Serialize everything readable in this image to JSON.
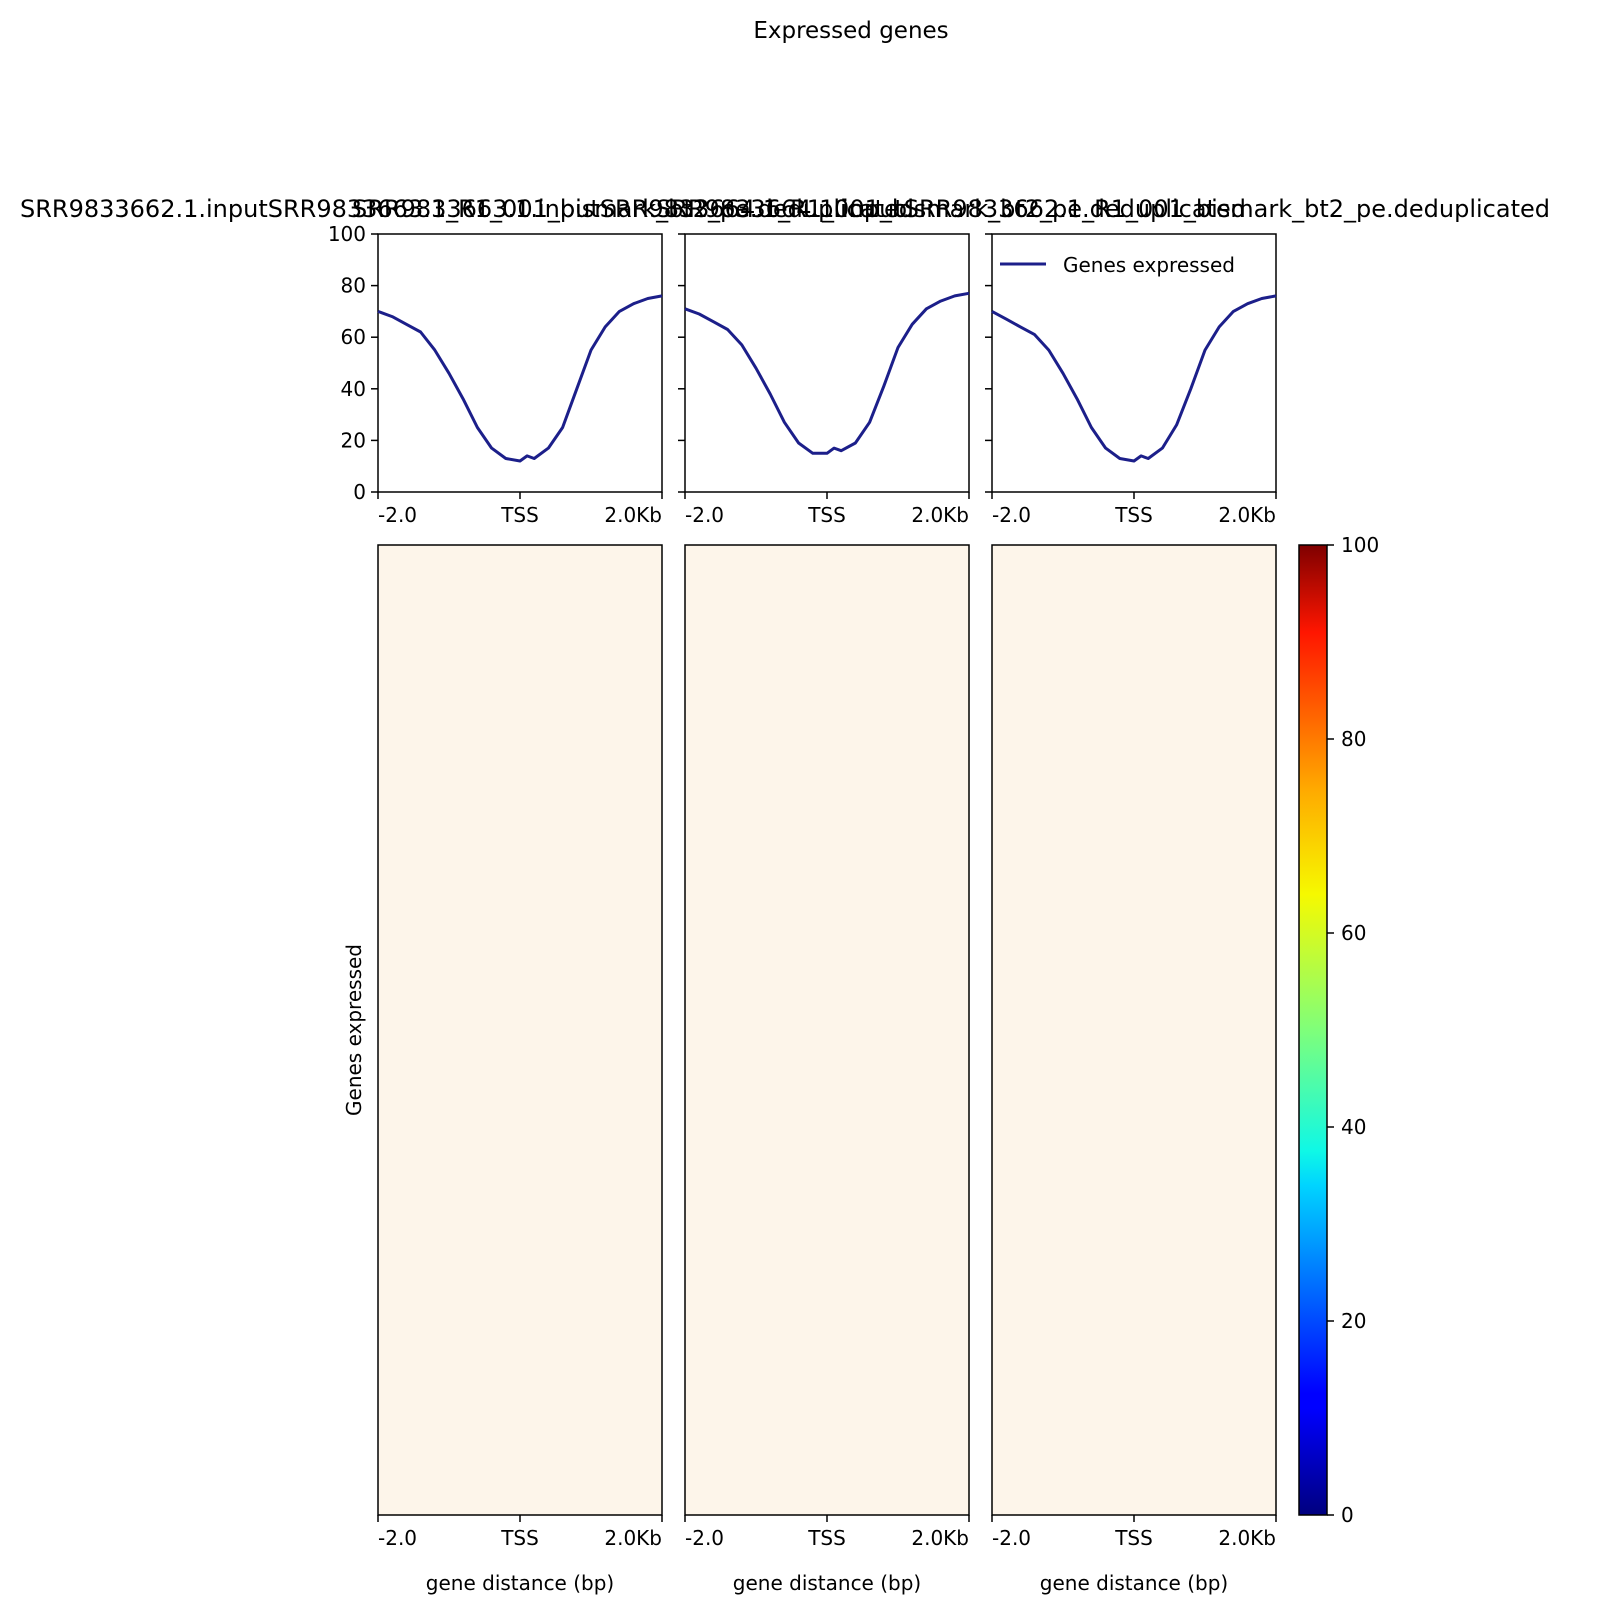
{
  "figure": {
    "title": "Expressed genes"
  },
  "chart_data": [
    {
      "type": "line",
      "panel": "profile-1",
      "title": "SRR9833662.1.inputSRR9833663.1_R1_001_bismark_bt2_pe.deduplicated",
      "x_tick_labels": [
        "-2.0",
        "TSS",
        "2.0Kb"
      ],
      "y_ticks": [
        0,
        20,
        40,
        60,
        80,
        100
      ],
      "ylim": [
        0,
        100
      ],
      "xlim": [
        -2000,
        2000
      ],
      "grid": false,
      "series": [
        {
          "name": "Genes expressed",
          "color": "#1c1f8a",
          "x": [
            -2000,
            -1800,
            -1600,
            -1400,
            -1200,
            -1000,
            -800,
            -600,
            -400,
            -200,
            0,
            100,
            200,
            400,
            600,
            800,
            1000,
            1200,
            1400,
            1600,
            1800,
            2000
          ],
          "y": [
            70,
            68,
            65,
            62,
            55,
            46,
            36,
            25,
            17,
            13,
            12,
            14,
            13,
            17,
            25,
            40,
            55,
            64,
            70,
            73,
            75,
            76
          ]
        }
      ]
    },
    {
      "type": "line",
      "panel": "profile-2",
      "title": "SRR9833663.1.inputSRR9833664.1_R1_001_bismark_bt2_pe.deduplicated",
      "x_tick_labels": [
        "-2.0",
        "TSS",
        "2.0Kb"
      ],
      "ylim": [
        0,
        100
      ],
      "xlim": [
        -2000,
        2000
      ],
      "grid": false,
      "series": [
        {
          "name": "Genes expressed",
          "color": "#1c1f8a",
          "x": [
            -2000,
            -1800,
            -1600,
            -1400,
            -1200,
            -1000,
            -800,
            -600,
            -400,
            -200,
            0,
            100,
            200,
            400,
            600,
            800,
            1000,
            1200,
            1400,
            1600,
            1800,
            2000
          ],
          "y": [
            71,
            69,
            66,
            63,
            57,
            48,
            38,
            27,
            19,
            15,
            15,
            17,
            16,
            19,
            27,
            41,
            56,
            65,
            71,
            74,
            76,
            77
          ]
        }
      ]
    },
    {
      "type": "line",
      "panel": "profile-3",
      "title": "SRR9833664.1.inputSRR9833662.1_R1_001_bismark_bt2_pe.deduplicated",
      "x_tick_labels": [
        "-2.0",
        "TSS",
        "2.0Kb"
      ],
      "ylim": [
        0,
        100
      ],
      "xlim": [
        -2000,
        2000
      ],
      "grid": false,
      "legend": {
        "position": "top-right",
        "entries": [
          "Genes expressed"
        ]
      },
      "series": [
        {
          "name": "Genes expressed",
          "color": "#1c1f8a",
          "x": [
            -2000,
            -1800,
            -1600,
            -1400,
            -1200,
            -1000,
            -800,
            -600,
            -400,
            -200,
            0,
            100,
            200,
            400,
            600,
            800,
            1000,
            1200,
            1400,
            1600,
            1800,
            2000
          ],
          "y": [
            70,
            67,
            64,
            61,
            55,
            46,
            36,
            25,
            17,
            13,
            12,
            14,
            13,
            17,
            26,
            40,
            55,
            64,
            70,
            73,
            75,
            76
          ]
        }
      ]
    },
    {
      "type": "heatmap",
      "panel": "heatmaps",
      "panels": 3,
      "x_tick_labels": [
        "-2.0",
        "TSS",
        "2.0Kb"
      ],
      "xlabel": "gene distance (bp)",
      "ylabel": "Genes expressed",
      "fill_color": "#fdf5ea",
      "colorbar": {
        "colormap": "jet",
        "range": [
          0,
          100
        ],
        "ticks": [
          0,
          20,
          40,
          60,
          80,
          100
        ]
      }
    }
  ]
}
